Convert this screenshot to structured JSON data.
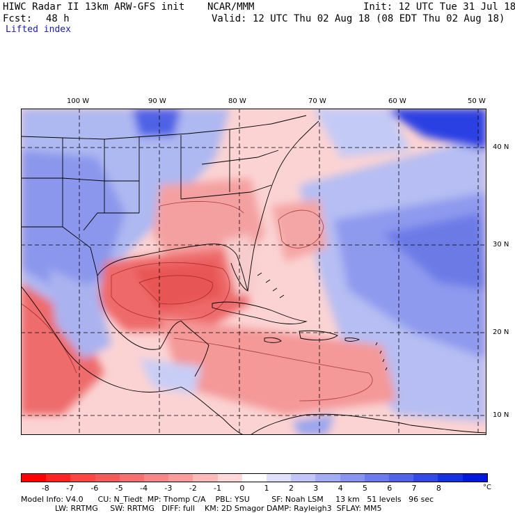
{
  "header": {
    "title": "HIWC Radar II 13km ARW-GFS init",
    "org": "NCAR/MMM",
    "init": "Init: 12 UTC Tue 31 Jul 18",
    "fcst_label": "Fcst:",
    "fcst_value": "48 h",
    "valid": "Valid: 12 UTC Thu 02 Aug 18 (08 EDT Thu 02 Aug 18)",
    "field": "Lifted index"
  },
  "map": {
    "lon_labels": [
      "100 W",
      "90 W",
      "80 W",
      "70 W",
      "60 W",
      "50 W"
    ],
    "lat_labels": [
      "40 N",
      "30 N",
      "20 N",
      "10 N"
    ],
    "colors": {
      "strong_red": "#e8585c",
      "mid_red": "#f4a7a7",
      "light_red": "#fbd6d6",
      "light_blue": "#d6dcf7",
      "mid_blue": "#9aa6ee",
      "strong_blue": "#4055e0",
      "deep_blue": "#1a2ee6"
    }
  },
  "colorbar": {
    "ticks": [
      "-8",
      "-7",
      "-6",
      "-5",
      "-4",
      "-3",
      "-2",
      "-1",
      "0",
      "1",
      "2",
      "3",
      "4",
      "5",
      "6",
      "7",
      "8"
    ],
    "unit": "°C",
    "colors": [
      "#ff0000",
      "#ff2222",
      "#ff4444",
      "#f55a5a",
      "#f77070",
      "#f98686",
      "#fb9c9c",
      "#fdb8b8",
      "#ffd8d8",
      "#ffffff",
      "#e0e0fb",
      "#c0c6f7",
      "#a4acf3",
      "#8892ef",
      "#6c7aeb",
      "#5062e7",
      "#3349e3",
      "#1432df",
      "#0018db"
    ]
  },
  "footer": {
    "line1": "Model Info: V4.0      CU: N_Tiedt  MP: Thomp C/A    PBL: YSU         SF: Noah LSM     13 km   51 levels   96 sec",
    "line2": "              LW: RRTMG     SW: RRTMG   DIFF: full    KM: 2D Smagor DAMP: Rayleigh3  SFLAY: MM5"
  }
}
